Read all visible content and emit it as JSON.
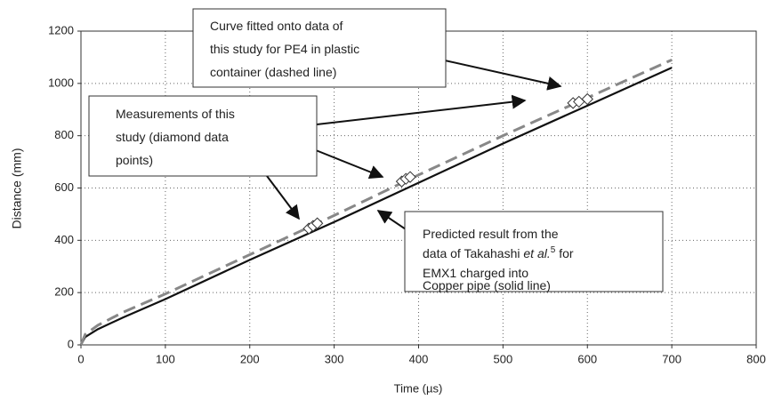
{
  "chart_data": {
    "type": "line",
    "xlabel": "Time (µs)",
    "ylabel": "Distance (mm)",
    "xlim": [
      0,
      800
    ],
    "xticks": [
      0,
      100,
      200,
      300,
      400,
      500,
      600,
      700,
      800
    ],
    "ylim": [
      0,
      1200
    ],
    "yticks": [
      0,
      200,
      400,
      600,
      800,
      1000,
      1200
    ],
    "grid": true,
    "series": [
      {
        "type": "line",
        "color": "#111111",
        "dash": false,
        "x": [
          0,
          5,
          20,
          50,
          100,
          200,
          300,
          400,
          500,
          600,
          700
        ],
        "values": [
          0,
          30,
          60,
          105,
          175,
          325,
          470,
          620,
          770,
          915,
          1060
        ]
      },
      {
        "type": "line",
        "color": "#888888",
        "dash": true,
        "x": [
          0,
          5,
          20,
          50,
          100,
          200,
          300,
          400,
          500,
          600,
          700
        ],
        "values": [
          0,
          40,
          75,
          125,
          195,
          345,
          495,
          650,
          800,
          945,
          1090
        ]
      },
      {
        "type": "scatter",
        "color": "#333333",
        "x": [
          270,
          275,
          280,
          380,
          385,
          390,
          583,
          590,
          600
        ],
        "values": [
          445,
          455,
          465,
          625,
          635,
          642,
          925,
          930,
          940
        ]
      }
    ],
    "annotations": [
      {
        "lines": [
          "Curve fitted onto data of",
          "this study for PE4 in plastic",
          "container (dashed line)"
        ]
      },
      {
        "lines": [
          "Measurements of this",
          "study (diamond data",
          "points)"
        ]
      },
      {
        "lines": [
          "Predicted result from the",
          [
            "data of Takahashi ",
            "et al.",
            "5",
            " for"
          ],
          "EMX1 charged into",
          "Copper pipe (solid line)"
        ]
      }
    ]
  }
}
